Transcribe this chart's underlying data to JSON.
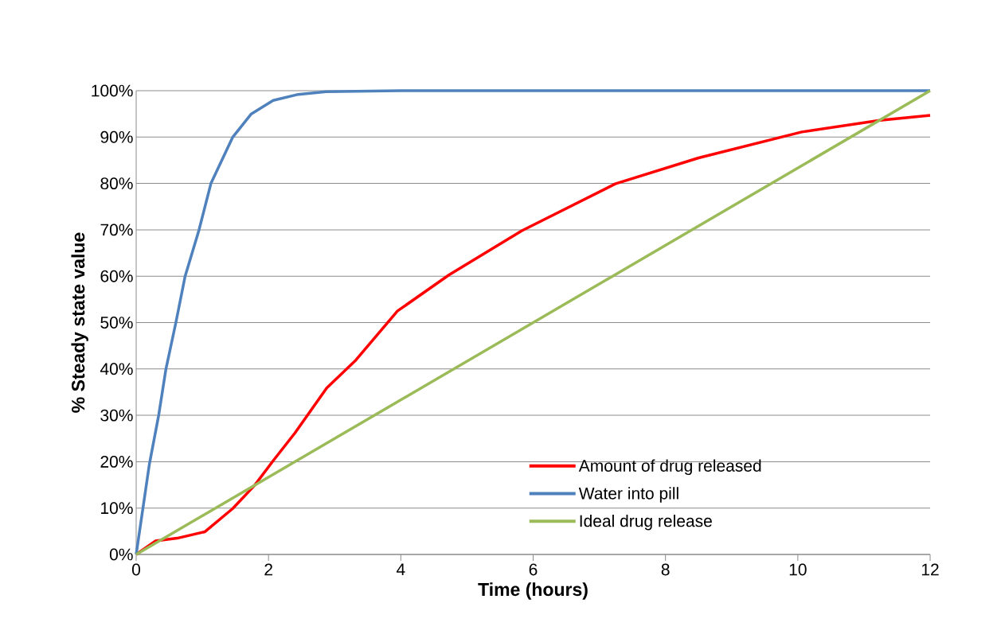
{
  "chart_data": {
    "type": "line",
    "xlabel": "Time (hours)",
    "ylabel": "% Steady state value",
    "xlim": [
      0,
      12
    ],
    "ylim": [
      0,
      100
    ],
    "xticks": [
      0,
      2,
      4,
      6,
      8,
      10,
      12
    ],
    "yticks": [
      {
        "value": 0,
        "label": "0%"
      },
      {
        "value": 10,
        "label": "10%"
      },
      {
        "value": 20,
        "label": "20%"
      },
      {
        "value": 30,
        "label": "30%"
      },
      {
        "value": 40,
        "label": "40%"
      },
      {
        "value": 50,
        "label": "50%"
      },
      {
        "value": 60,
        "label": "60%"
      },
      {
        "value": 70,
        "label": "70%"
      },
      {
        "value": 80,
        "label": "80%"
      },
      {
        "value": 90,
        "label": "90%"
      },
      {
        "value": 100,
        "label": "100%"
      }
    ],
    "grid": "y",
    "legend": "bottom right",
    "marker": "none",
    "line_style": "solid",
    "series": [
      {
        "name": "Amount of drug released",
        "color": "#ff0000",
        "x": [
          0,
          0.29,
          0.62,
          1.04,
          1.46,
          1.79,
          2.07,
          2.4,
          2.88,
          3.32,
          3.95,
          4.73,
          5.83,
          7.24,
          8.5,
          10.06,
          11.24,
          12
        ],
        "values": [
          0,
          2.9,
          3.5,
          4.9,
          9.9,
          14.9,
          20.2,
          26.2,
          35.9,
          41.9,
          52.5,
          60.3,
          69.8,
          79.9,
          85.5,
          91.1,
          93.6,
          94.7
        ]
      },
      {
        "name": "Water into pill",
        "color": "#4f81bd",
        "x": [
          0,
          0.2,
          0.34,
          0.45,
          0.6,
          0.74,
          0.95,
          1.13,
          1.46,
          1.74,
          2.07,
          2.45,
          2.87,
          4,
          12
        ],
        "values": [
          0,
          19.5,
          30,
          40,
          50,
          60,
          70,
          80,
          90,
          95,
          97.9,
          99.2,
          99.8,
          100,
          100
        ]
      },
      {
        "name": "Ideal drug release",
        "color": "#9bbb59",
        "x": [
          0,
          12
        ],
        "values": [
          0,
          100
        ]
      }
    ]
  }
}
